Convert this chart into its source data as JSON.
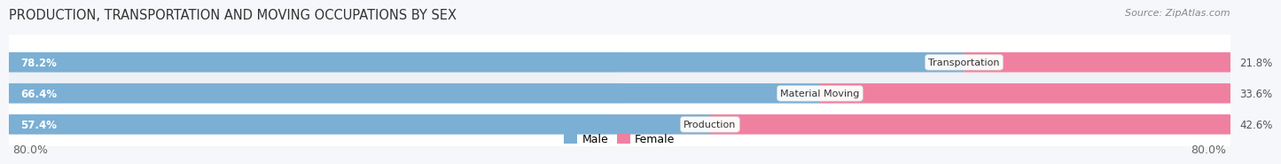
{
  "title": "PRODUCTION, TRANSPORTATION AND MOVING OCCUPATIONS BY SEX",
  "source": "Source: ZipAtlas.com",
  "categories": [
    "Transportation",
    "Material Moving",
    "Production"
  ],
  "male_values": [
    78.2,
    66.4,
    57.4
  ],
  "female_values": [
    21.8,
    33.6,
    42.6
  ],
  "male_color": "#7bafd4",
  "female_color": "#f080a0",
  "male_light_color": "#b8d4ea",
  "female_light_color": "#f8b8cc",
  "male_label": "Male",
  "female_label": "Female",
  "axis_label_left": "80.0%",
  "axis_label_right": "80.0%",
  "bg_color": "#f5f7fa",
  "row_colors": [
    "#ffffff",
    "#eef1f5",
    "#ffffff"
  ],
  "bar_bg_color_male": "#dce8f2",
  "bar_bg_color_female": "#fbe8ee",
  "title_fontsize": 10.5,
  "source_fontsize": 8,
  "bar_label_fontsize": 8.5,
  "cat_label_fontsize": 8,
  "legend_fontsize": 9,
  "axis_tick_fontsize": 9,
  "total_width": 160,
  "x_min": -80,
  "x_max": 80
}
